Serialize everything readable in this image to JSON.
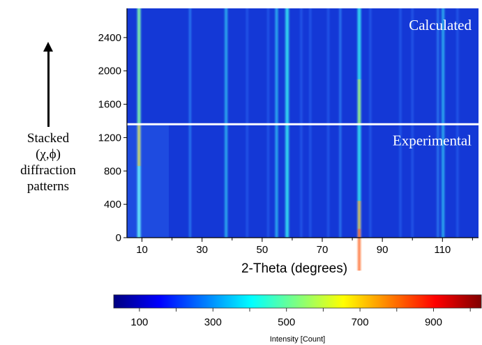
{
  "chart_data": {
    "type": "heatmap",
    "title": "",
    "xlabel": "2-Theta (degrees)",
    "ylabel": "",
    "side_label": [
      "Stacked",
      "(χ,ϕ)",
      "diffraction",
      "patterns"
    ],
    "xlim": [
      5,
      122
    ],
    "x_ticks": [
      10,
      30,
      50,
      70,
      90,
      110
    ],
    "y_ticks": [
      0,
      400,
      800,
      1200,
      1600,
      2000,
      2400
    ],
    "panels": [
      {
        "name": "Calculated",
        "y_range": [
          1360,
          2750
        ]
      },
      {
        "name": "Experimental",
        "y_range": [
          0,
          1360
        ]
      }
    ],
    "peaks_2theta": [
      9,
      26,
      38,
      45,
      52,
      54.8,
      58.3,
      63,
      66,
      72,
      76,
      82.3,
      86,
      96,
      100,
      108.5,
      110.2,
      115
    ],
    "colorbar": {
      "label": "Intensity [Count]",
      "ticks": [
        100,
        300,
        500,
        700,
        900
      ],
      "range": [
        30,
        1030
      ],
      "colormap": [
        "#00007f",
        "#0000ff",
        "#007fff",
        "#00ffff",
        "#7fff7f",
        "#ffff00",
        "#ff7f00",
        "#ff0000",
        "#7f0000"
      ]
    }
  }
}
